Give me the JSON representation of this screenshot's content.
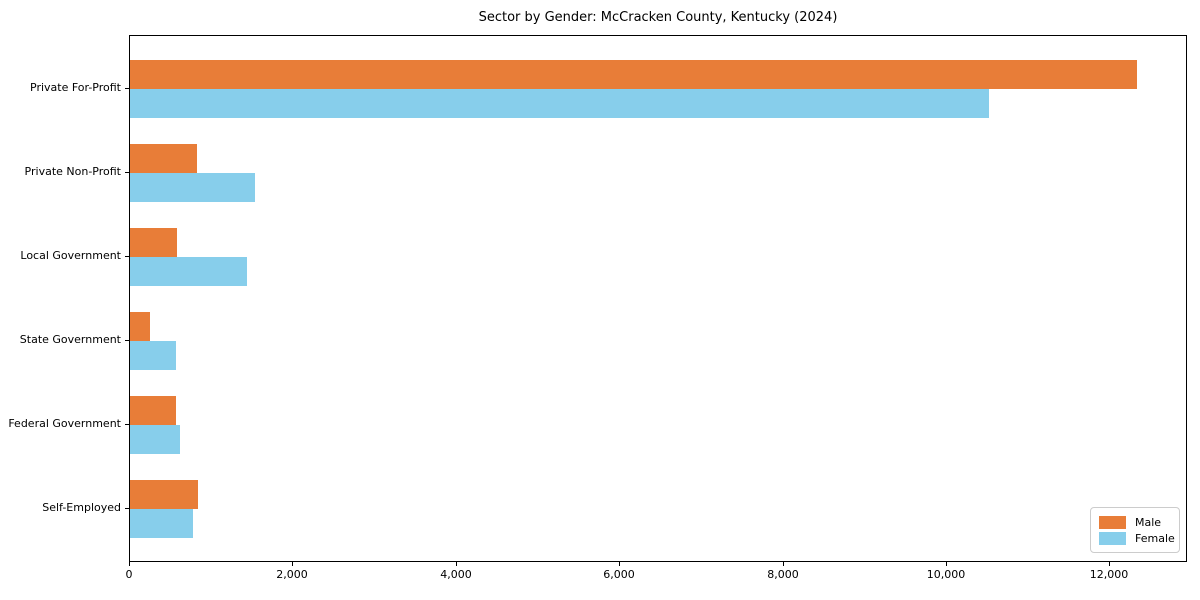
{
  "title": "Sector by Gender: McCracken County, Kentucky (2024)",
  "colors": {
    "male": "#e87d38",
    "female": "#87ceeb",
    "spine": "#000000",
    "legend_border": "#cccccc",
    "text": "#000000"
  },
  "legend": {
    "entries": [
      {
        "label": "Male",
        "color": "#e87d38"
      },
      {
        "label": "Female",
        "color": "#87ceeb"
      }
    ],
    "position": "lower right"
  },
  "chart_data": {
    "type": "bar",
    "orientation": "horizontal",
    "title": "Sector by Gender: McCracken County, Kentucky (2024)",
    "categories": [
      "Private For-Profit",
      "Private Non-Profit",
      "Local Government",
      "State Government",
      "Federal Government",
      "Self-Employed"
    ],
    "series": [
      {
        "name": "Male",
        "color": "#e87d38",
        "values": [
          12330,
          820,
          575,
          245,
          560,
          835
        ]
      },
      {
        "name": "Female",
        "color": "#87ceeb",
        "values": [
          10520,
          1530,
          1435,
          565,
          615,
          775
        ]
      }
    ],
    "xlabel": "",
    "ylabel": "",
    "xlim": [
      0,
      12950
    ],
    "xticks": [
      0,
      2000,
      4000,
      6000,
      8000,
      10000,
      12000
    ],
    "xtick_labels": [
      "0",
      "2,000",
      "4,000",
      "6,000",
      "8,000",
      "10,000",
      "12,000"
    ],
    "grid": false,
    "legend_position": "lower right"
  }
}
